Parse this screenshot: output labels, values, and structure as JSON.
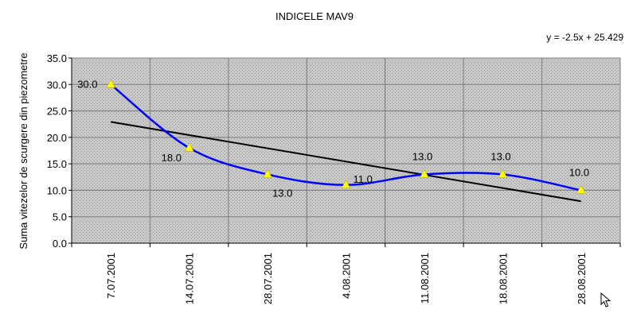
{
  "chart_data": {
    "type": "line",
    "title": "INDICELE MAV9",
    "ylabel": "Suma vitezelor de scurgere din piezometre",
    "xlabel": "",
    "categories": [
      "7.07.2001",
      "14.07.2001",
      "28.07.2001",
      "4.08.2001",
      "11.08.2001",
      "18.08.2001",
      "28.08.2001"
    ],
    "series": [
      {
        "values": [
          30.0,
          18.0,
          13.0,
          11.0,
          13.0,
          13.0,
          10.0
        ],
        "data_labels": [
          "30.0",
          "18.0",
          "13.0",
          "11.0",
          "13.0",
          "13.0",
          "10.0"
        ],
        "color": "#0000ff",
        "marker": "triangle",
        "marker_color": "#ffff00"
      }
    ],
    "trendline": {
      "equation": "y = -2.5x + 25.429",
      "slope": -2.5,
      "intercept": 25.429,
      "color": "#000000"
    },
    "ylim": [
      0,
      35
    ],
    "yticks": [
      "0.0",
      "5.0",
      "10.0",
      "15.0",
      "20.0",
      "25.0",
      "30.0",
      "35.0"
    ],
    "grid": true,
    "plot_background": "#c0c0c0",
    "legend": "none"
  },
  "cursor": {
    "icon": "mouse-pointer-icon"
  }
}
